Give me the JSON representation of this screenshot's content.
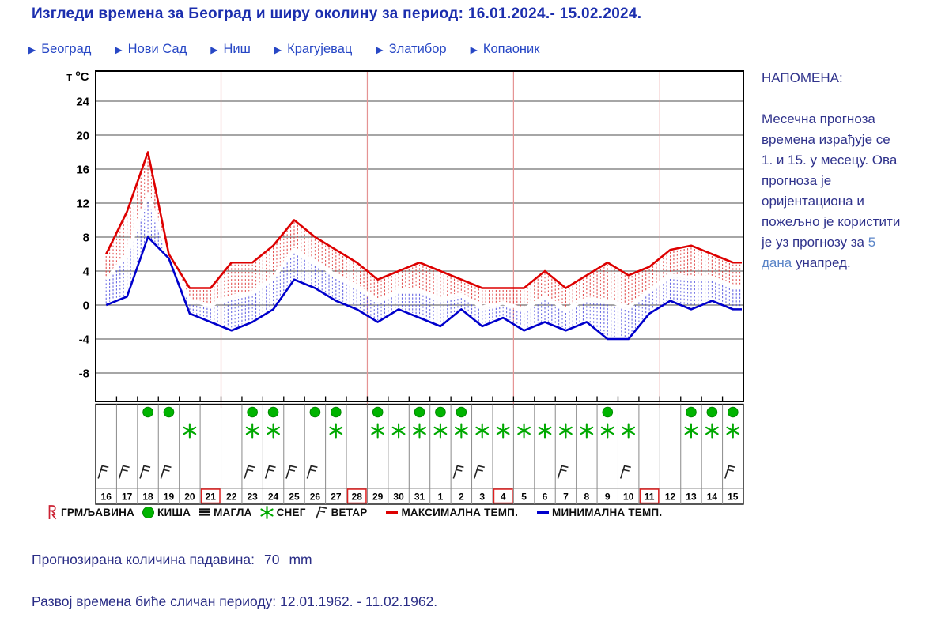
{
  "title": "Изгледи времена за Београд и ширу околину за период: 16.01.2024.- 15.02.2024.",
  "icons": {
    "nav_arrow": "▶"
  },
  "nav": [
    {
      "label": "Београд"
    },
    {
      "label": "Нови Сад"
    },
    {
      "label": "Ниш"
    },
    {
      "label": "Крагујевац"
    },
    {
      "label": "Златибор"
    },
    {
      "label": "Копаоник"
    }
  ],
  "axis": {
    "prefix": "т",
    "degree": "o",
    "celsius": "C"
  },
  "chart_data": {
    "type": "line",
    "title": "Изгледи времена за Београд и ширу околину за период: 16.01.2024.- 15.02.2024.",
    "ylabel": "т °C",
    "xlabel": "",
    "grid": true,
    "legend_position": "bottom",
    "yticks": [
      24,
      20,
      16,
      12,
      8,
      4,
      0,
      -4,
      -8
    ],
    "ylim": [
      -11,
      27.5
    ],
    "categories": [
      "16",
      "17",
      "18",
      "19",
      "20",
      "21",
      "22",
      "23",
      "24",
      "25",
      "26",
      "27",
      "28",
      "29",
      "30",
      "31",
      "1",
      "2",
      "3",
      "4",
      "5",
      "6",
      "7",
      "8",
      "9",
      "10",
      "11",
      "12",
      "13",
      "14",
      "15"
    ],
    "series": [
      {
        "name": "МАКСИМАЛНА ТЕМП.",
        "color": "#dd0000",
        "values": [
          6,
          11,
          18,
          6,
          2,
          2,
          5,
          5,
          7,
          10,
          8,
          6.5,
          5,
          3,
          4,
          5,
          4,
          3,
          2,
          2,
          2,
          4,
          2,
          3.5,
          5,
          3.5,
          4.5,
          6.5,
          7,
          6,
          5
        ]
      },
      {
        "name": "МИНИМАЛНА ТЕМП.",
        "color": "#0000cc",
        "values": [
          0,
          1,
          8,
          5.5,
          -1,
          -2,
          -3,
          -2,
          -0.5,
          3,
          2,
          0.5,
          -0.5,
          -2,
          -0.5,
          -1.5,
          -2.5,
          -0.5,
          -2.5,
          -1.5,
          -3,
          -2,
          -3,
          -2,
          -4,
          -4,
          -1,
          0.5,
          -0.5,
          0.5,
          -0.5
        ]
      }
    ],
    "days": [
      {
        "d": "16",
        "rain": false,
        "snow": false,
        "wind": true,
        "sun": false
      },
      {
        "d": "17",
        "rain": false,
        "snow": false,
        "wind": true,
        "sun": false
      },
      {
        "d": "18",
        "rain": true,
        "snow": false,
        "wind": true,
        "sun": false
      },
      {
        "d": "19",
        "rain": true,
        "snow": false,
        "wind": true,
        "sun": false
      },
      {
        "d": "20",
        "rain": false,
        "snow": true,
        "wind": false,
        "sun": false
      },
      {
        "d": "21",
        "rain": false,
        "snow": false,
        "wind": false,
        "sun": true
      },
      {
        "d": "22",
        "rain": false,
        "snow": false,
        "wind": false,
        "sun": false
      },
      {
        "d": "23",
        "rain": true,
        "snow": true,
        "wind": true,
        "sun": false
      },
      {
        "d": "24",
        "rain": true,
        "snow": true,
        "wind": true,
        "sun": false
      },
      {
        "d": "25",
        "rain": false,
        "snow": false,
        "wind": true,
        "sun": false
      },
      {
        "d": "26",
        "rain": true,
        "snow": false,
        "wind": true,
        "sun": false
      },
      {
        "d": "27",
        "rain": true,
        "snow": true,
        "wind": false,
        "sun": false
      },
      {
        "d": "28",
        "rain": false,
        "snow": false,
        "wind": false,
        "sun": true
      },
      {
        "d": "29",
        "rain": true,
        "snow": true,
        "wind": false,
        "sun": false
      },
      {
        "d": "30",
        "rain": false,
        "snow": true,
        "wind": false,
        "sun": false
      },
      {
        "d": "31",
        "rain": true,
        "snow": true,
        "wind": false,
        "sun": false
      },
      {
        "d": "1",
        "rain": true,
        "snow": true,
        "wind": false,
        "sun": false
      },
      {
        "d": "2",
        "rain": true,
        "snow": true,
        "wind": true,
        "sun": false
      },
      {
        "d": "3",
        "rain": false,
        "snow": true,
        "wind": true,
        "sun": false
      },
      {
        "d": "4",
        "rain": false,
        "snow": true,
        "wind": false,
        "sun": true
      },
      {
        "d": "5",
        "rain": false,
        "snow": true,
        "wind": false,
        "sun": false
      },
      {
        "d": "6",
        "rain": false,
        "snow": true,
        "wind": false,
        "sun": false
      },
      {
        "d": "7",
        "rain": false,
        "snow": true,
        "wind": true,
        "sun": false
      },
      {
        "d": "8",
        "rain": false,
        "snow": true,
        "wind": false,
        "sun": false
      },
      {
        "d": "9",
        "rain": true,
        "snow": true,
        "wind": false,
        "sun": false
      },
      {
        "d": "10",
        "rain": false,
        "snow": true,
        "wind": true,
        "sun": false
      },
      {
        "d": "11",
        "rain": false,
        "snow": false,
        "wind": false,
        "sun": true
      },
      {
        "d": "12",
        "rain": false,
        "snow": false,
        "wind": false,
        "sun": false
      },
      {
        "d": "13",
        "rain": true,
        "snow": true,
        "wind": false,
        "sun": false
      },
      {
        "d": "14",
        "rain": true,
        "snow": true,
        "wind": false,
        "sun": false
      },
      {
        "d": "15",
        "rain": true,
        "snow": true,
        "wind": true,
        "sun": false
      }
    ]
  },
  "legend": {
    "items": [
      {
        "icon": "thunder-icon",
        "label": "ГРМЉАВИНА"
      },
      {
        "icon": "rain-icon",
        "label": "КИША"
      },
      {
        "icon": "fog-icon",
        "label": "МАГЛА"
      },
      {
        "icon": "snow-icon",
        "label": "СНЕГ"
      },
      {
        "icon": "wind-icon",
        "label": "ВЕТАР"
      },
      {
        "icon": "max-temp-line",
        "label": "МАКСИМАЛНА ТЕМП."
      },
      {
        "icon": "min-temp-line",
        "label": "МИНИМАЛНА ТЕМП."
      }
    ]
  },
  "note": {
    "heading": "НАПОМЕНА:",
    "body_1": "Месечна прогноза времена израђује се 1. и 15. у месецу. Ова прогноза је оријентациона и пожељно је користити је уз прогнозу за ",
    "link": "5 дана",
    "body_2": " унапред."
  },
  "precipitation": {
    "label": "Прогнозирана количина падавина:",
    "value": "70",
    "unit": "mm"
  },
  "analog": {
    "text": "Развој времена биће сличан периоду: 12.01.1962. - 11.02.1962."
  },
  "colors": {
    "max_line": "#dd0000",
    "min_line": "#0000cc",
    "mean_line": "#ffffff",
    "icon_green": "#00b400",
    "sunday_red": "#e02020",
    "title_blue": "#1b2eae",
    "nav_blue": "#2747c5",
    "note_navy": "#30338c",
    "link_blue": "#5b85c8",
    "grid": "#4d4d4d",
    "sunday_gridline": "#e59393"
  }
}
